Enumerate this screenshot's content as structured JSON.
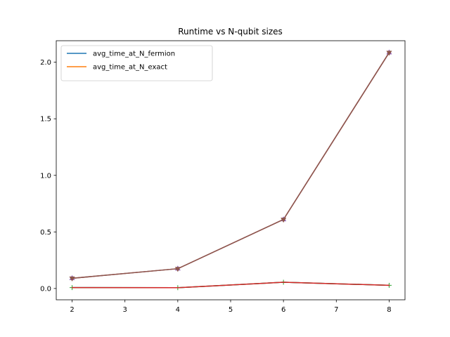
{
  "chart_data": {
    "type": "line",
    "title": "Runtime vs N-qubit sizes",
    "xlabel": "",
    "ylabel": "",
    "x": [
      2,
      4,
      6,
      8
    ],
    "xlim": [
      1.7,
      8.3
    ],
    "ylim": [
      -0.1,
      2.19
    ],
    "xticks": [
      2,
      3,
      4,
      5,
      6,
      7,
      8
    ],
    "yticks": [
      0.0,
      0.5,
      1.0,
      1.5,
      2.0
    ],
    "ytick_labels": [
      "0.0",
      "0.5",
      "1.0",
      "1.5",
      "2.0"
    ],
    "grid": false,
    "legend_position": "upper-left",
    "series": [
      {
        "name": "avg_time_at_N_fermion",
        "color": "#1f77b4",
        "values": [
          0.008,
          0.007,
          0.055,
          0.028
        ],
        "marker": "none",
        "in_legend": true
      },
      {
        "name": "avg_time_at_N_exact",
        "color": "#ff7f0e",
        "values": [
          0.09,
          0.175,
          0.61,
          2.085
        ],
        "marker": "none",
        "in_legend": true
      },
      {
        "color": "#2ca02c",
        "values": [
          0.008,
          0.007,
          0.055,
          0.028
        ],
        "marker": "plus",
        "in_legend": false
      },
      {
        "color": "#d62728",
        "values": [
          0.008,
          0.007,
          0.055,
          0.028
        ],
        "marker": "none",
        "in_legend": false
      },
      {
        "color": "#9467bd",
        "values": [
          0.09,
          0.175,
          0.61,
          2.085
        ],
        "marker": "triangle-up",
        "in_legend": false
      },
      {
        "color": "#8c564b",
        "values": [
          0.09,
          0.175,
          0.61,
          2.085
        ],
        "marker": "triangle-down",
        "in_legend": false
      }
    ]
  }
}
